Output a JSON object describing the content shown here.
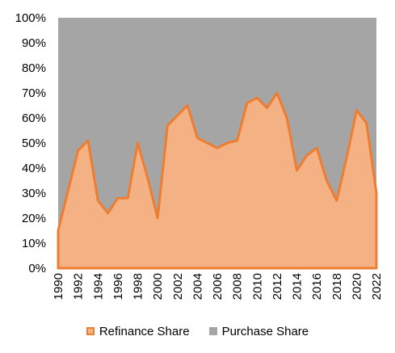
{
  "chart_data": {
    "type": "area",
    "stacked": true,
    "x": [
      1990,
      1991,
      1992,
      1993,
      1994,
      1995,
      1996,
      1997,
      1998,
      1999,
      2000,
      2001,
      2002,
      2003,
      2004,
      2005,
      2006,
      2007,
      2008,
      2009,
      2010,
      2011,
      2012,
      2013,
      2014,
      2015,
      2016,
      2017,
      2018,
      2019,
      2020,
      2021,
      2022
    ],
    "x_tick_labels": [
      "1990",
      "1992",
      "1994",
      "1996",
      "1998",
      "2000",
      "2002",
      "2004",
      "2006",
      "2008",
      "2010",
      "2012",
      "2014",
      "2016",
      "2018",
      "2020",
      "2022"
    ],
    "y_tick_labels": [
      "0%",
      "10%",
      "20%",
      "30%",
      "40%",
      "50%",
      "60%",
      "70%",
      "80%",
      "90%",
      "100%"
    ],
    "ylim": [
      0,
      100
    ],
    "series": [
      {
        "name": "Refinance Share",
        "color": "#F4B183",
        "line_color": "#ED7D31",
        "values": [
          15,
          31,
          47,
          51,
          27,
          22,
          28,
          28,
          50,
          36,
          20,
          57,
          61,
          65,
          52,
          50,
          48,
          50,
          51,
          66,
          68,
          64,
          70,
          60,
          39,
          45,
          48,
          35,
          27,
          44,
          63,
          58,
          30
        ]
      },
      {
        "name": "Purchase Share",
        "color": "#A5A5A5",
        "values": [
          85,
          69,
          53,
          49,
          73,
          78,
          72,
          72,
          50,
          64,
          80,
          43,
          39,
          35,
          48,
          50,
          52,
          50,
          49,
          34,
          32,
          36,
          30,
          40,
          61,
          55,
          52,
          65,
          73,
          56,
          37,
          42,
          70
        ]
      }
    ],
    "grid": false,
    "legend_position": "bottom"
  }
}
